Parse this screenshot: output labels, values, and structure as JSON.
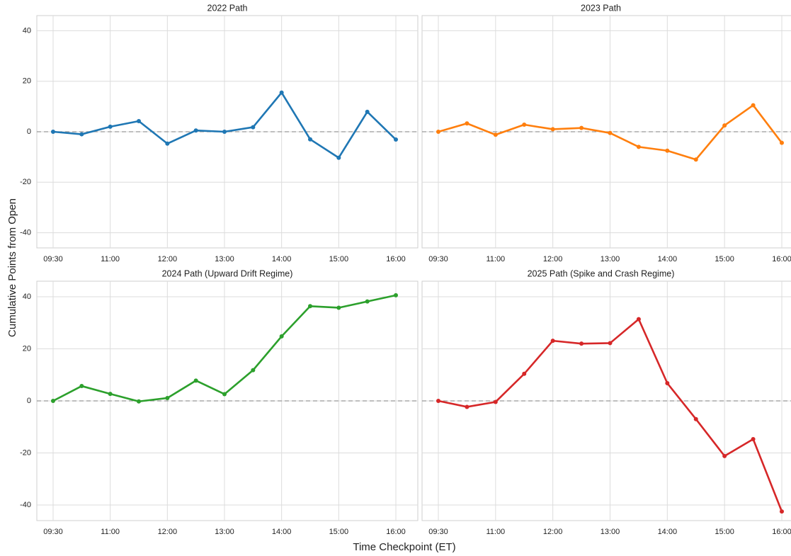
{
  "ylabel": "Cumulative Points from Open",
  "xlabel": "Time Checkpoint (ET)",
  "chart_data": [
    {
      "type": "line",
      "title": "2022 Path",
      "color": "#1f77b4",
      "categories": [
        "09:30",
        null,
        "11:00",
        null,
        "12:00",
        null,
        "13:00",
        null,
        "14:00",
        null,
        "15:00",
        null,
        "16:00"
      ],
      "values": [
        0,
        -1,
        2,
        4.2,
        -4.7,
        0.5,
        0,
        1.8,
        15.5,
        -3,
        -10.3,
        7.9,
        -3.1
      ],
      "ylim": [
        -46,
        46
      ],
      "yticks": [
        -40,
        -20,
        0,
        20,
        40
      ],
      "hline": 0,
      "grid": true,
      "show_yticks": true
    },
    {
      "type": "line",
      "title": "2023 Path",
      "color": "#ff7f0e",
      "categories": [
        "09:30",
        null,
        "11:00",
        null,
        "12:00",
        null,
        "13:00",
        null,
        "14:00",
        null,
        "15:00",
        null,
        "16:00"
      ],
      "values": [
        0,
        3.3,
        -1.2,
        2.8,
        1,
        1.5,
        -0.5,
        -6,
        -7.5,
        -11,
        2.5,
        10.5,
        -4.4
      ],
      "ylim": [
        -46,
        46
      ],
      "yticks": [
        -40,
        -20,
        0,
        20,
        40
      ],
      "hline": 0,
      "grid": true,
      "show_yticks": false
    },
    {
      "type": "line",
      "title": "2024 Path (Upward Drift Regime)",
      "color": "#2ca02c",
      "categories": [
        "09:30",
        null,
        "11:00",
        null,
        "12:00",
        null,
        "13:00",
        null,
        "14:00",
        null,
        "15:00",
        null,
        "16:00"
      ],
      "values": [
        0,
        5.7,
        2.7,
        -0.2,
        1.1,
        7.8,
        2.6,
        11.8,
        24.8,
        36.4,
        35.8,
        38.2,
        40.6
      ],
      "ylim": [
        -46,
        46
      ],
      "yticks": [
        -40,
        -20,
        0,
        20,
        40
      ],
      "hline": 0,
      "grid": true,
      "show_yticks": true
    },
    {
      "type": "line",
      "title": "2025 Path (Spike and Crash Regime)",
      "color": "#d62728",
      "categories": [
        "09:30",
        null,
        "11:00",
        null,
        "12:00",
        null,
        "13:00",
        null,
        "14:00",
        null,
        "15:00",
        null,
        "16:00"
      ],
      "values": [
        0,
        -2.3,
        -0.4,
        10.4,
        23.1,
        22,
        22.2,
        31.4,
        6.8,
        -7,
        -21.2,
        -14.7,
        -42.5
      ],
      "ylim": [
        -46,
        46
      ],
      "yticks": [
        -40,
        -20,
        0,
        20,
        40
      ],
      "hline": 0,
      "grid": true,
      "show_yticks": false
    }
  ]
}
